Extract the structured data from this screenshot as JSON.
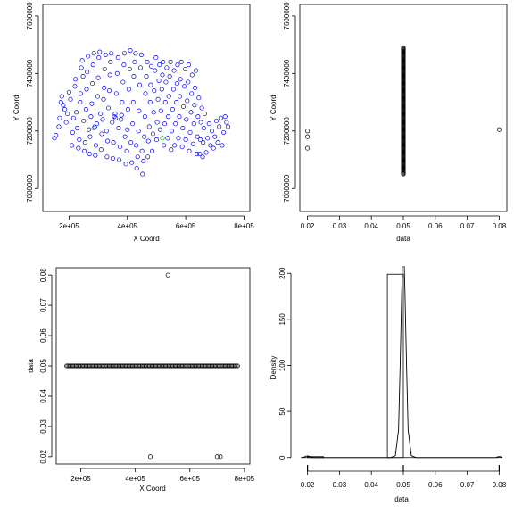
{
  "chart_data": [
    {
      "type": "scatter",
      "xlabel": "X Coord",
      "ylabel": "Y Coord",
      "xlim": [
        110000,
        820000
      ],
      "ylim": [
        6920000,
        7640000
      ],
      "xticks": [
        200000,
        400000,
        600000,
        800000
      ],
      "xtick_labels": [
        "2e+05",
        "4e+05",
        "6e+05",
        "8e+05"
      ],
      "yticks": [
        7000000,
        7200000,
        7400000,
        7600000
      ],
      "ytick_labels": [
        "7000000",
        "7200000",
        "7400000",
        "7600000"
      ],
      "marker_color": "#0000ff",
      "points": [
        [
          150000,
          7175000
        ],
        [
          155000,
          7185000
        ],
        [
          165000,
          7215000
        ],
        [
          168000,
          7245000
        ],
        [
          172000,
          7300000
        ],
        [
          175000,
          7320000
        ],
        [
          180000,
          7290000
        ],
        [
          185000,
          7275000
        ],
        [
          190000,
          7230000
        ],
        [
          195000,
          7260000
        ],
        [
          200000,
          7335000
        ],
        [
          205000,
          7310000
        ],
        [
          210000,
          7150000
        ],
        [
          212000,
          7195000
        ],
        [
          215000,
          7245000
        ],
        [
          220000,
          7355000
        ],
        [
          222000,
          7380000
        ],
        [
          225000,
          7265000
        ],
        [
          228000,
          7210000
        ],
        [
          232000,
          7140000
        ],
        [
          235000,
          7170000
        ],
        [
          238000,
          7300000
        ],
        [
          240000,
          7330000
        ],
        [
          242000,
          7420000
        ],
        [
          245000,
          7445000
        ],
        [
          248000,
          7390000
        ],
        [
          250000,
          7235000
        ],
        [
          252000,
          7130000
        ],
        [
          255000,
          7160000
        ],
        [
          258000,
          7275000
        ],
        [
          260000,
          7345000
        ],
        [
          262000,
          7405000
        ],
        [
          265000,
          7460000
        ],
        [
          268000,
          7205000
        ],
        [
          270000,
          7120000
        ],
        [
          272000,
          7180000
        ],
        [
          275000,
          7250000
        ],
        [
          278000,
          7295000
        ],
        [
          280000,
          7365000
        ],
        [
          282000,
          7430000
        ],
        [
          285000,
          7470000
        ],
        [
          288000,
          7215000
        ],
        [
          290000,
          7115000
        ],
        [
          292000,
          7150000
        ],
        [
          295000,
          7225000
        ],
        [
          298000,
          7320000
        ],
        [
          300000,
          7385000
        ],
        [
          302000,
          7455000
        ],
        [
          305000,
          7475000
        ],
        [
          308000,
          7260000
        ],
        [
          310000,
          7135000
        ],
        [
          312000,
          7190000
        ],
        [
          315000,
          7240000
        ],
        [
          318000,
          7310000
        ],
        [
          320000,
          7350000
        ],
        [
          322000,
          7415000
        ],
        [
          325000,
          7465000
        ],
        [
          328000,
          7200000
        ],
        [
          330000,
          7110000
        ],
        [
          332000,
          7165000
        ],
        [
          335000,
          7280000
        ],
        [
          338000,
          7340000
        ],
        [
          340000,
          7395000
        ],
        [
          342000,
          7440000
        ],
        [
          345000,
          7470000
        ],
        [
          348000,
          7230000
        ],
        [
          350000,
          7105000
        ],
        [
          352000,
          7160000
        ],
        [
          355000,
          7250000
        ],
        [
          358000,
          7260000
        ],
        [
          360000,
          7245000
        ],
        [
          362000,
          7330000
        ],
        [
          365000,
          7400000
        ],
        [
          368000,
          7455000
        ],
        [
          370000,
          7210000
        ],
        [
          372000,
          7100000
        ],
        [
          375000,
          7145000
        ],
        [
          378000,
          7240000
        ],
        [
          380000,
          7255000
        ],
        [
          382000,
          7300000
        ],
        [
          385000,
          7370000
        ],
        [
          388000,
          7430000
        ],
        [
          390000,
          7470000
        ],
        [
          392000,
          7180000
        ],
        [
          395000,
          7085000
        ],
        [
          398000,
          7130000
        ],
        [
          400000,
          7205000
        ],
        [
          402000,
          7275000
        ],
        [
          405000,
          7345000
        ],
        [
          408000,
          7415000
        ],
        [
          410000,
          7480000
        ],
        [
          412000,
          7160000
        ],
        [
          415000,
          7090000
        ],
        [
          418000,
          7225000
        ],
        [
          420000,
          7300000
        ],
        [
          422000,
          7390000
        ],
        [
          425000,
          7440000
        ],
        [
          428000,
          7470000
        ],
        [
          430000,
          7150000
        ],
        [
          432000,
          7070000
        ],
        [
          435000,
          7110000
        ],
        [
          438000,
          7200000
        ],
        [
          440000,
          7270000
        ],
        [
          442000,
          7360000
        ],
        [
          445000,
          7420000
        ],
        [
          448000,
          7465000
        ],
        [
          450000,
          7130000
        ],
        [
          452000,
          7050000
        ],
        [
          455000,
          7095000
        ],
        [
          458000,
          7180000
        ],
        [
          460000,
          7250000
        ],
        [
          462000,
          7330000
        ],
        [
          465000,
          7390000
        ],
        [
          468000,
          7440000
        ],
        [
          470000,
          7110000
        ],
        [
          472000,
          7165000
        ],
        [
          475000,
          7215000
        ],
        [
          478000,
          7300000
        ],
        [
          480000,
          7360000
        ],
        [
          482000,
          7425000
        ],
        [
          485000,
          7130000
        ],
        [
          488000,
          7190000
        ],
        [
          490000,
          7265000
        ],
        [
          492000,
          7340000
        ],
        [
          495000,
          7410000
        ],
        [
          498000,
          7455000
        ],
        [
          500000,
          7170000
        ],
        [
          502000,
          7230000
        ],
        [
          505000,
          7310000
        ],
        [
          508000,
          7375000
        ],
        [
          510000,
          7430000
        ],
        [
          512000,
          7205000
        ],
        [
          515000,
          7270000
        ],
        [
          518000,
          7345000
        ],
        [
          520000,
          7395000
        ],
        [
          522000,
          7440000
        ],
        [
          525000,
          7150000
        ],
        [
          528000,
          7225000
        ],
        [
          530000,
          7300000
        ],
        [
          532000,
          7370000
        ],
        [
          535000,
          7420000
        ],
        [
          538000,
          7175000
        ],
        [
          540000,
          7250000
        ],
        [
          542000,
          7320000
        ],
        [
          545000,
          7390000
        ],
        [
          548000,
          7440000
        ],
        [
          550000,
          7135000
        ],
        [
          552000,
          7200000
        ],
        [
          555000,
          7275000
        ],
        [
          558000,
          7345000
        ],
        [
          560000,
          7410000
        ],
        [
          562000,
          7150000
        ],
        [
          565000,
          7225000
        ],
        [
          568000,
          7300000
        ],
        [
          570000,
          7365000
        ],
        [
          572000,
          7430000
        ],
        [
          575000,
          7175000
        ],
        [
          578000,
          7250000
        ],
        [
          580000,
          7320000
        ],
        [
          582000,
          7380000
        ],
        [
          585000,
          7440000
        ],
        [
          588000,
          7145000
        ],
        [
          590000,
          7210000
        ],
        [
          592000,
          7285000
        ],
        [
          595000,
          7355000
        ],
        [
          598000,
          7415000
        ],
        [
          600000,
          7170000
        ],
        [
          602000,
          7240000
        ],
        [
          605000,
          7305000
        ],
        [
          608000,
          7370000
        ],
        [
          610000,
          7430000
        ],
        [
          612000,
          7130000
        ],
        [
          615000,
          7195000
        ],
        [
          618000,
          7265000
        ],
        [
          620000,
          7330000
        ],
        [
          622000,
          7395000
        ],
        [
          625000,
          7155000
        ],
        [
          628000,
          7225000
        ],
        [
          630000,
          7290000
        ],
        [
          632000,
          7350000
        ],
        [
          635000,
          7410000
        ],
        [
          638000,
          7120000
        ],
        [
          640000,
          7180000
        ],
        [
          642000,
          7250000
        ],
        [
          645000,
          7315000
        ],
        [
          648000,
          7120000
        ],
        [
          650000,
          7170000
        ],
        [
          652000,
          7230000
        ],
        [
          655000,
          7280000
        ],
        [
          658000,
          7110000
        ],
        [
          660000,
          7160000
        ],
        [
          662000,
          7210000
        ],
        [
          665000,
          7260000
        ],
        [
          670000,
          7125000
        ],
        [
          675000,
          7175000
        ],
        [
          680000,
          7225000
        ],
        [
          685000,
          7150000
        ],
        [
          690000,
          7200000
        ],
        [
          695000,
          7140000
        ],
        [
          700000,
          7180000
        ],
        [
          705000,
          7235000
        ],
        [
          710000,
          7160000
        ],
        [
          715000,
          7215000
        ],
        [
          720000,
          7245000
        ],
        [
          725000,
          7150000
        ],
        [
          730000,
          7195000
        ],
        [
          735000,
          7250000
        ],
        [
          740000,
          7230000
        ],
        [
          745000,
          7215000
        ]
      ],
      "highlight_points": [
        [
          285000,
          7210000
        ],
        [
          520000,
          7175000
        ]
      ],
      "highlight_color": "#00aa00"
    },
    {
      "type": "scatter",
      "xlabel": "data",
      "ylabel": "Y Coord",
      "xlim": [
        0.0176,
        0.0824
      ],
      "ylim": [
        6920000,
        7640000
      ],
      "xticks": [
        0.02,
        0.03,
        0.04,
        0.05,
        0.06,
        0.07,
        0.08
      ],
      "xtick_labels": [
        "0.02",
        "0.03",
        "0.04",
        "0.05",
        "0.06",
        "0.07",
        "0.08"
      ],
      "yticks": [
        7000000,
        7200000,
        7400000,
        7600000
      ],
      "ytick_labels": [
        "7000000",
        "7200000",
        "7400000",
        "7600000"
      ],
      "marker_color": "#000000",
      "column": {
        "x": 0.05,
        "y_from": 7050000,
        "y_to": 7490000
      },
      "points": [
        [
          0.02,
          7200000
        ],
        [
          0.02,
          7180000
        ],
        [
          0.02,
          7140000
        ],
        [
          0.08,
          7205000
        ]
      ]
    },
    {
      "type": "scatter",
      "xlabel": "X Coord",
      "ylabel": "data",
      "xlim": [
        110000,
        820000
      ],
      "ylim": [
        0.0176,
        0.0824
      ],
      "xticks": [
        200000,
        400000,
        600000,
        800000
      ],
      "xtick_labels": [
        "2e+05",
        "4e+05",
        "6e+05",
        "8e+05"
      ],
      "yticks": [
        0.02,
        0.03,
        0.04,
        0.05,
        0.06,
        0.07,
        0.08
      ],
      "ytick_labels": [
        "0.02",
        "0.03",
        "0.04",
        "0.05",
        "0.06",
        "0.07",
        "0.08"
      ],
      "marker_color": "#000000",
      "row": {
        "y": 0.05,
        "x_from": 148000,
        "x_to": 775000
      },
      "points": [
        [
          520000,
          0.08
        ],
        [
          455000,
          0.02
        ],
        [
          700000,
          0.02
        ],
        [
          712000,
          0.02
        ]
      ]
    },
    {
      "type": "histogram",
      "xlabel": "data",
      "ylabel": "Density",
      "xlim": [
        0.0176,
        0.0824
      ],
      "ylim": [
        -7,
        206
      ],
      "xticks": [
        0.02,
        0.03,
        0.04,
        0.05,
        0.06,
        0.07,
        0.08
      ],
      "xtick_labels": [
        "0.02",
        "0.03",
        "0.04",
        "0.05",
        "0.06",
        "0.07",
        "0.08"
      ],
      "yticks": [
        0,
        50,
        100,
        150,
        200
      ],
      "ytick_labels": [
        "0",
        "50",
        "100",
        "150",
        "200"
      ],
      "bars": [
        {
          "x0": 0.045,
          "x1": 0.05,
          "density": 199
        },
        {
          "x0": 0.02,
          "x1": 0.025,
          "density": 1
        }
      ],
      "density_curve": [
        [
          0.018,
          0
        ],
        [
          0.019,
          0.6
        ],
        [
          0.0195,
          1.4
        ],
        [
          0.02,
          1.8
        ],
        [
          0.0205,
          1.4
        ],
        [
          0.021,
          0.6
        ],
        [
          0.022,
          0
        ],
        [
          0.046,
          0
        ],
        [
          0.0475,
          2
        ],
        [
          0.0485,
          30
        ],
        [
          0.049,
          100
        ],
        [
          0.0495,
          180
        ],
        [
          0.0498,
          220
        ],
        [
          0.05,
          240
        ],
        [
          0.0502,
          220
        ],
        [
          0.0505,
          180
        ],
        [
          0.051,
          100
        ],
        [
          0.0515,
          30
        ],
        [
          0.0525,
          2
        ],
        [
          0.054,
          0
        ],
        [
          0.079,
          0
        ],
        [
          0.0795,
          0.8
        ],
        [
          0.08,
          1
        ],
        [
          0.0805,
          0.8
        ],
        [
          0.081,
          0
        ]
      ],
      "rug": [
        0.02,
        0.05,
        0.08
      ]
    }
  ]
}
